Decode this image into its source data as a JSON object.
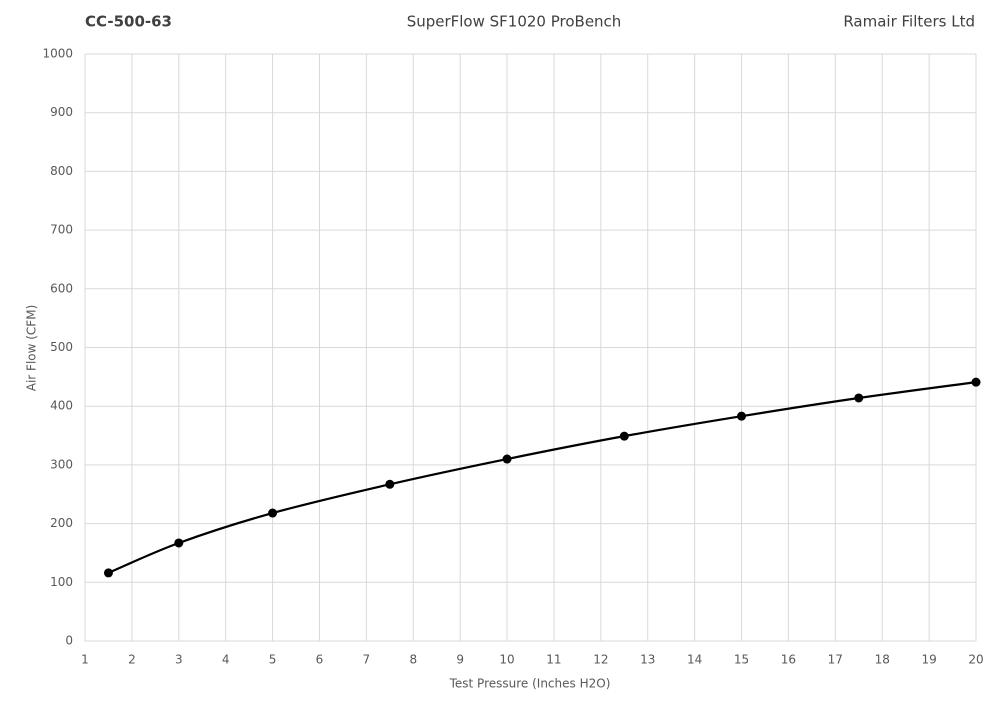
{
  "chart_data": {
    "type": "line",
    "title": "SuperFlow SF1020 ProBench",
    "left_title": "CC-500-63",
    "right_title": "Ramair Filters Ltd",
    "x_label": "Test Pressure (Inches H2O)",
    "y_label": "Air Flow (CFM)",
    "x": [
      1.5,
      3,
      5,
      7.5,
      10,
      12.5,
      15,
      17.5,
      20
    ],
    "values": [
      116,
      167,
      218,
      267,
      310,
      349,
      383,
      414,
      441
    ],
    "color": "#000000",
    "xlim": [
      1,
      20
    ],
    "xticks": [
      1,
      2,
      3,
      4,
      5,
      6,
      7,
      8,
      9,
      10,
      11,
      12,
      13,
      14,
      15,
      16,
      17,
      18,
      19,
      20
    ],
    "ylim": [
      0,
      1000
    ],
    "yticks": [
      0,
      100,
      200,
      300,
      400,
      500,
      600,
      700,
      800,
      900,
      1000
    ],
    "grid": true,
    "smooth": true,
    "markers": true
  }
}
